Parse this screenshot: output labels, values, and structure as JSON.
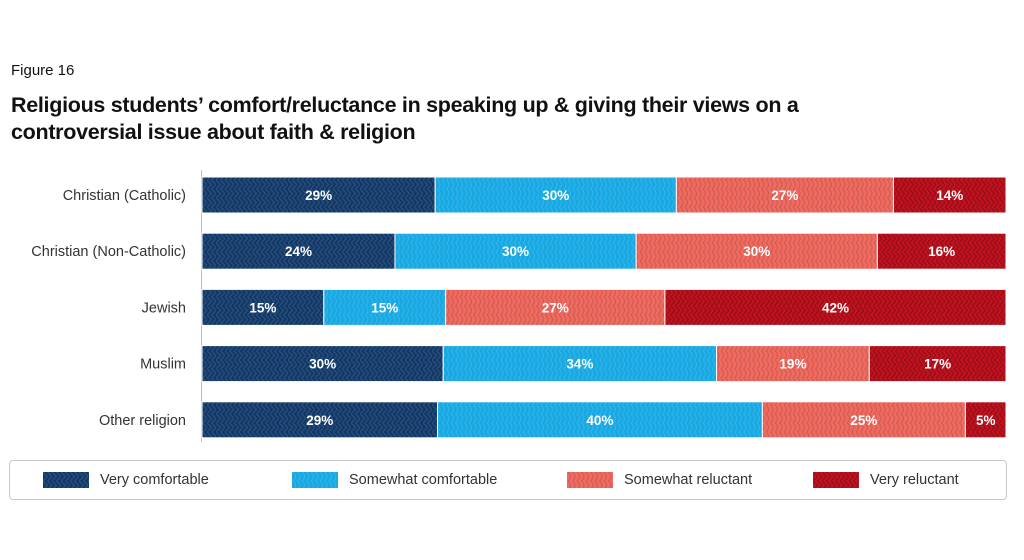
{
  "figure_label": "Figure 16",
  "title": "Religious students’ comfort/reluctance in speaking up & giving their views on a controversial issue about faith & religion",
  "chart_data": {
    "type": "bar",
    "orientation": "horizontal",
    "stacked": true,
    "normalized_percent": true,
    "categories": [
      "Christian (Catholic)",
      "Christian (Non-Catholic)",
      "Jewish",
      "Muslim",
      "Other religion"
    ],
    "series": [
      {
        "name": "Very comfortable",
        "values": [
          29,
          24,
          15,
          30,
          29
        ],
        "color": "#17375e"
      },
      {
        "name": "Somewhat comfortable",
        "values": [
          30,
          30,
          15,
          34,
          40
        ],
        "color": "#1ea6dd"
      },
      {
        "name": "Somewhat reluctant",
        "values": [
          27,
          30,
          27,
          19,
          25
        ],
        "color": "#f06a5f"
      },
      {
        "name": "Very reluctant",
        "values": [
          14,
          16,
          42,
          17,
          5
        ],
        "color": "#c1121f"
      }
    ],
    "value_suffix": "%",
    "legend_position": "bottom",
    "grid": false
  }
}
